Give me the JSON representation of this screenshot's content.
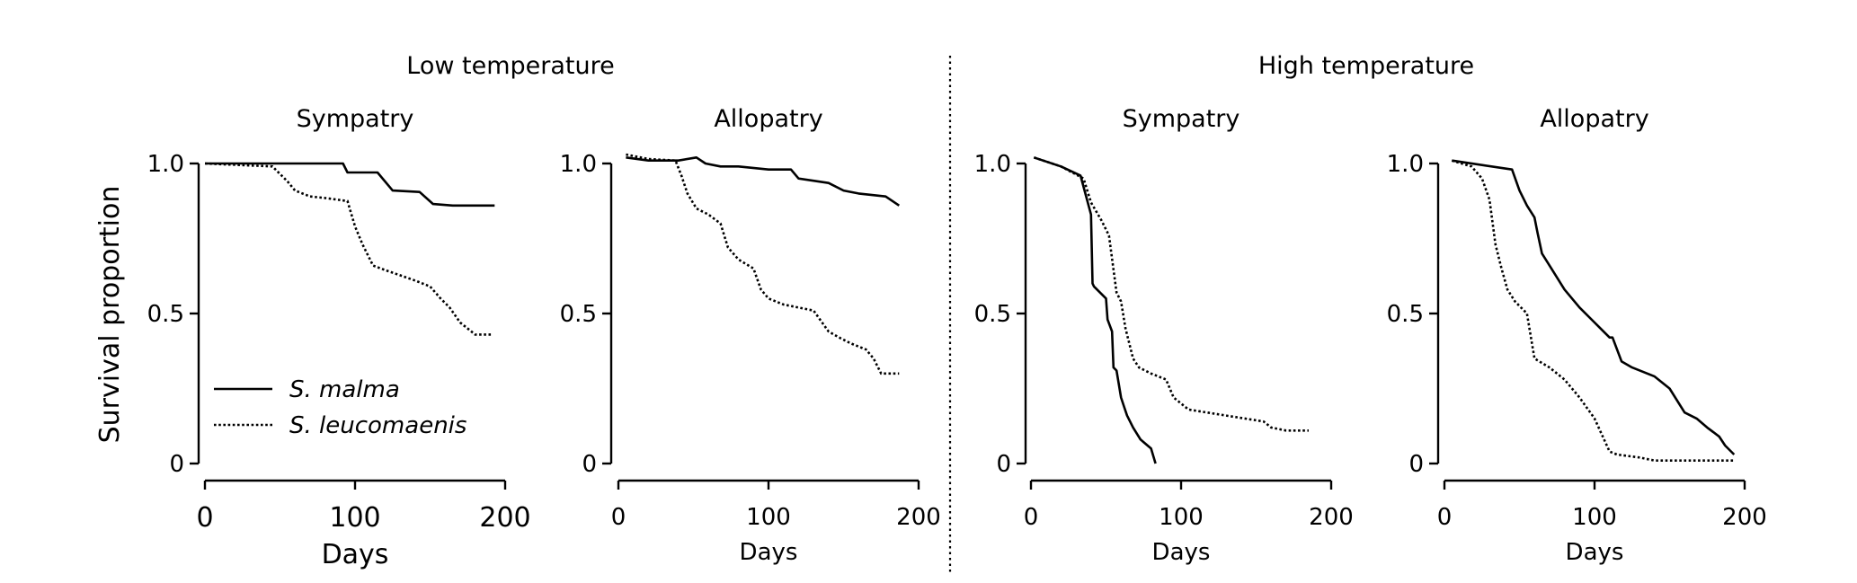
{
  "figure": {
    "group_titles": [
      "Low temperature",
      "High temperature"
    ],
    "ylabel": "Survival proportion",
    "legend": [
      {
        "label": "S. malma",
        "style": "solid"
      },
      {
        "label": "S. leucomaenis",
        "style": "dotted"
      }
    ],
    "yticks": [
      {
        "value": 0,
        "label": "0"
      },
      {
        "value": 0.5,
        "label": "0.5"
      },
      {
        "value": 1.0,
        "label": "1.0"
      }
    ],
    "xticks": [
      {
        "value": 0,
        "label": "0"
      },
      {
        "value": 100,
        "label": "100"
      },
      {
        "value": 200,
        "label": "200"
      }
    ],
    "colors": {
      "line": "#000000",
      "background": "#ffffff"
    }
  },
  "chart_data": [
    {
      "type": "line",
      "group": "Low temperature",
      "title": "Sympatry",
      "xlabel": "Days",
      "ylabel": "Survival proportion",
      "xlim": [
        0,
        200
      ],
      "ylim": [
        0,
        1.0
      ],
      "series": [
        {
          "name": "S. malma",
          "style": "solid",
          "x": [
            0,
            92,
            95,
            115,
            125,
            143,
            152,
            165,
            193
          ],
          "y": [
            1.0,
            1.0,
            0.97,
            0.97,
            0.91,
            0.905,
            0.865,
            0.86,
            0.86
          ]
        },
        {
          "name": "S. leucomaenis",
          "style": "dotted",
          "x": [
            0,
            45,
            55,
            60,
            70,
            80,
            95,
            100,
            105,
            112,
            120,
            140,
            150,
            157,
            163,
            170,
            175,
            180,
            192
          ],
          "y": [
            1.0,
            0.99,
            0.94,
            0.91,
            0.89,
            0.885,
            0.875,
            0.79,
            0.73,
            0.66,
            0.645,
            0.61,
            0.59,
            0.55,
            0.52,
            0.47,
            0.45,
            0.43,
            0.43
          ]
        }
      ]
    },
    {
      "type": "line",
      "group": "Low temperature",
      "title": "Allopatry",
      "xlabel": "Days",
      "ylabel": "",
      "xlim": [
        0,
        200
      ],
      "ylim": [
        0,
        1.0
      ],
      "series": [
        {
          "name": "S. malma",
          "style": "solid",
          "x": [
            5,
            20,
            40,
            52,
            58,
            68,
            80,
            100,
            115,
            120,
            140,
            150,
            160,
            178,
            187
          ],
          "y": [
            1.02,
            1.01,
            1.01,
            1.02,
            1.0,
            0.99,
            0.99,
            0.98,
            0.98,
            0.95,
            0.935,
            0.91,
            0.9,
            0.89,
            0.86
          ]
        },
        {
          "name": "S. leucomaenis",
          "style": "dotted",
          "x": [
            5,
            20,
            38,
            42,
            46,
            52,
            60,
            68,
            73,
            80,
            90,
            95,
            100,
            110,
            130,
            140,
            147,
            155,
            165,
            170,
            175,
            187
          ],
          "y": [
            1.03,
            1.015,
            1.01,
            0.96,
            0.9,
            0.85,
            0.83,
            0.8,
            0.72,
            0.68,
            0.65,
            0.58,
            0.55,
            0.53,
            0.51,
            0.44,
            0.42,
            0.4,
            0.38,
            0.35,
            0.3,
            0.3
          ]
        }
      ]
    },
    {
      "type": "line",
      "group": "High temperature",
      "title": "Sympatry",
      "xlabel": "Days",
      "ylabel": "",
      "xlim": [
        0,
        200
      ],
      "ylim": [
        0,
        1.0
      ],
      "series": [
        {
          "name": "S. malma",
          "style": "solid",
          "x": [
            2,
            20,
            33,
            40,
            41,
            42,
            50,
            51,
            54,
            55,
            57,
            60,
            62,
            64,
            68,
            73,
            80,
            83
          ],
          "y": [
            1.02,
            0.99,
            0.96,
            0.83,
            0.6,
            0.59,
            0.55,
            0.48,
            0.44,
            0.32,
            0.31,
            0.22,
            0.19,
            0.16,
            0.12,
            0.08,
            0.05,
            0.0
          ]
        },
        {
          "name": "S. leucomaenis",
          "style": "dotted",
          "x": [
            2,
            20,
            35,
            40,
            47,
            52,
            57,
            60,
            63,
            68,
            72,
            80,
            90,
            95,
            105,
            130,
            155,
            160,
            170,
            185
          ],
          "y": [
            1.02,
            0.99,
            0.95,
            0.87,
            0.81,
            0.76,
            0.57,
            0.54,
            0.45,
            0.35,
            0.32,
            0.3,
            0.28,
            0.22,
            0.18,
            0.16,
            0.14,
            0.12,
            0.11,
            0.11
          ]
        }
      ]
    },
    {
      "type": "line",
      "group": "High temperature",
      "title": "Allopatry",
      "xlabel": "Days",
      "ylabel": "",
      "xlim": [
        0,
        200
      ],
      "ylim": [
        0,
        1.0
      ],
      "series": [
        {
          "name": "S. malma",
          "style": "solid",
          "x": [
            5,
            45,
            50,
            55,
            60,
            62,
            65,
            70,
            80,
            90,
            100,
            110,
            112,
            118,
            125,
            140,
            150,
            160,
            168,
            175,
            183,
            187,
            193
          ],
          "y": [
            1.01,
            0.98,
            0.91,
            0.86,
            0.82,
            0.77,
            0.7,
            0.66,
            0.58,
            0.52,
            0.47,
            0.42,
            0.42,
            0.34,
            0.32,
            0.29,
            0.25,
            0.17,
            0.15,
            0.12,
            0.09,
            0.06,
            0.03
          ]
        },
        {
          "name": "S. leucomaenis",
          "style": "dotted",
          "x": [
            5,
            18,
            25,
            30,
            34,
            38,
            42,
            47,
            55,
            60,
            70,
            80,
            90,
            100,
            110,
            115,
            130,
            140,
            193
          ],
          "y": [
            1.01,
            0.99,
            0.95,
            0.88,
            0.73,
            0.65,
            0.58,
            0.54,
            0.5,
            0.35,
            0.32,
            0.28,
            0.22,
            0.15,
            0.04,
            0.03,
            0.02,
            0.01,
            0.01
          ]
        }
      ]
    }
  ]
}
